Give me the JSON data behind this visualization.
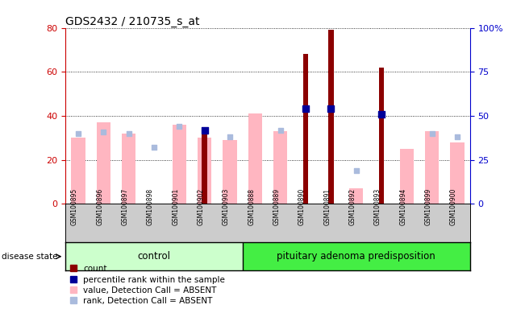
{
  "title": "GDS2432 / 210735_s_at",
  "samples": [
    "GSM100895",
    "GSM100896",
    "GSM100897",
    "GSM100898",
    "GSM100901",
    "GSM100902",
    "GSM100903",
    "GSM100888",
    "GSM100889",
    "GSM100890",
    "GSM100891",
    "GSM100892",
    "GSM100893",
    "GSM100894",
    "GSM100899",
    "GSM100900"
  ],
  "n_control": 7,
  "n_pituitary": 9,
  "count_values": [
    null,
    null,
    null,
    null,
    null,
    33,
    null,
    null,
    null,
    68,
    79,
    null,
    62,
    null,
    null,
    null
  ],
  "percentile_values": [
    null,
    null,
    null,
    null,
    null,
    42,
    null,
    null,
    null,
    54,
    54,
    null,
    51,
    null,
    null,
    null
  ],
  "value_absent": [
    30,
    37,
    32,
    null,
    36,
    30,
    29,
    41,
    33,
    null,
    null,
    7,
    null,
    25,
    33,
    28
  ],
  "rank_absent": [
    40,
    41,
    40,
    32,
    44,
    null,
    38,
    null,
    42,
    null,
    null,
    19,
    null,
    null,
    40,
    38
  ],
  "ylim_left": [
    0,
    80
  ],
  "ylim_right": [
    0,
    100
  ],
  "yticks_left": [
    0,
    20,
    40,
    60,
    80
  ],
  "yticks_right": [
    0,
    25,
    50,
    75,
    100
  ],
  "ytick_labels_right": [
    "0",
    "25",
    "50",
    "75",
    "100%"
  ],
  "color_count": "#8B0000",
  "color_percentile": "#000099",
  "color_value_absent": "#FFB6C1",
  "color_rank_absent": "#AABBDD",
  "color_control_band": "#CCFFCC",
  "color_pituitary_band": "#44EE44",
  "axis_color_left": "#CC0000",
  "axis_color_right": "#0000CC"
}
